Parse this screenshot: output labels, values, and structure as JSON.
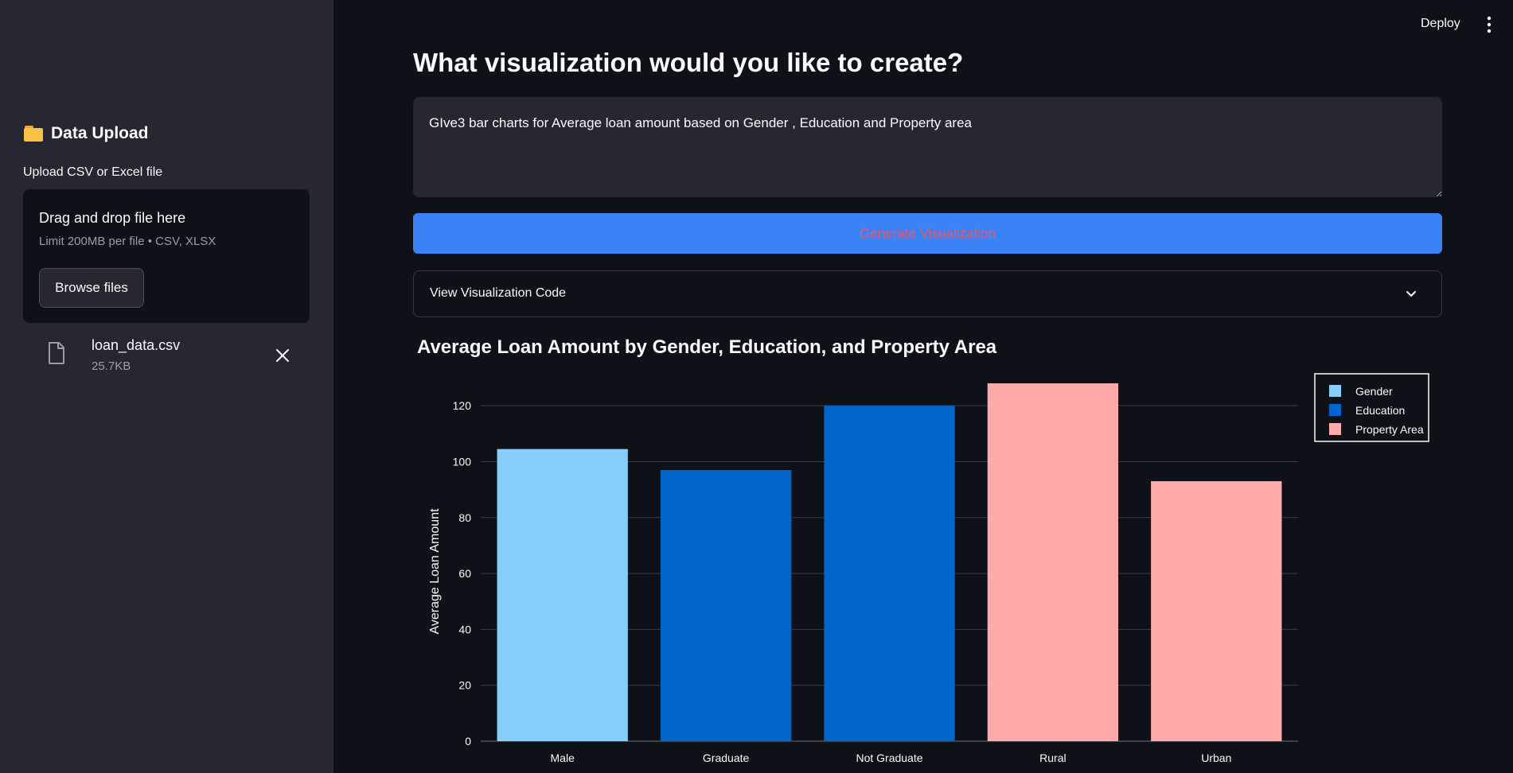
{
  "sidebar": {
    "title": "Data Upload",
    "upload_label": "Upload CSV or Excel file",
    "dropzone": {
      "title": "Drag and drop file here",
      "subtitle": "Limit 200MB per file • CSV, XLSX",
      "browse_label": "Browse files"
    },
    "file": {
      "name": "loan_data.csv",
      "size": "25.7KB"
    }
  },
  "topbar": {
    "deploy_label": "Deploy"
  },
  "main": {
    "title": "What visualization would you like to create?",
    "prompt_value": "GIve3 bar charts for Average loan amount based on Gender , Education and Property area",
    "generate_label": "Generate Visualization",
    "expander_label": "View Visualization Code"
  },
  "colors": {
    "gender": "#87cefa",
    "education": "#0066cc",
    "property": "#ffaaaa",
    "accent": "#3b82f6"
  },
  "chart_data": {
    "type": "bar",
    "title": "Average Loan Amount by Gender, Education, and Property Area",
    "xlabel": "",
    "ylabel": "Average Loan Amount",
    "ylim": [
      0,
      130
    ],
    "yticks": [
      0,
      20,
      40,
      60,
      80,
      100,
      120
    ],
    "grid": true,
    "legend_position": "top-right",
    "categories": [
      "Male",
      "Graduate",
      "Not Graduate",
      "Rural",
      "Urban"
    ],
    "values": [
      104.5,
      97,
      120,
      128,
      93
    ],
    "series_of_bar": [
      "Gender",
      "Education",
      "Education",
      "Property Area",
      "Property Area"
    ],
    "legend": [
      {
        "name": "Gender",
        "color": "#87cefa"
      },
      {
        "name": "Education",
        "color": "#0066cc"
      },
      {
        "name": "Property Area",
        "color": "#ffaaaa"
      }
    ]
  }
}
